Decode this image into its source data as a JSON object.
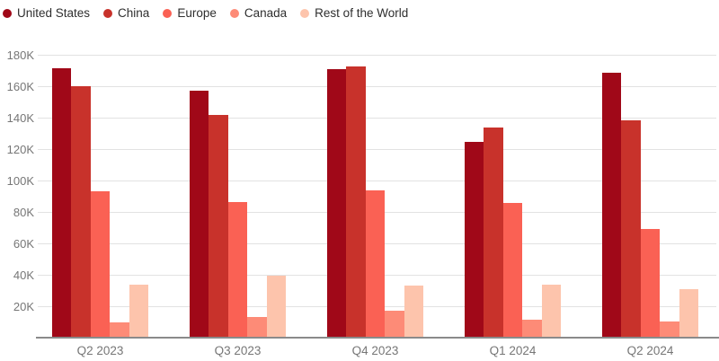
{
  "chart_data": {
    "type": "bar",
    "title": "",
    "xlabel": "",
    "ylabel": "",
    "categories": [
      "Q2 2023",
      "Q3 2023",
      "Q4 2023",
      "Q1 2024",
      "Q2 2024"
    ],
    "series": [
      {
        "name": "United States",
        "color": "#a00818",
        "values": [
          171500,
          157000,
          171000,
          124500,
          168500
        ]
      },
      {
        "name": "China",
        "color": "#c8322b",
        "values": [
          160000,
          141500,
          172500,
          133500,
          138500
        ]
      },
      {
        "name": "Europe",
        "color": "#fa6154",
        "values": [
          93000,
          86500,
          93500,
          86000,
          69000
        ]
      },
      {
        "name": "Canada",
        "color": "#fd8b77",
        "values": [
          10000,
          13000,
          17000,
          11500,
          10500
        ]
      },
      {
        "name": "Rest of the World",
        "color": "#fdc4ac",
        "values": [
          34000,
          39500,
          33000,
          33500,
          31000
        ]
      }
    ],
    "ylim": [
      0,
      180000
    ],
    "ytick_step": 20000,
    "ytick_labels": [
      "20K",
      "40K",
      "60K",
      "80K",
      "100K",
      "120K",
      "140K",
      "160K",
      "180K"
    ],
    "grid": true,
    "legend_position": "top-left",
    "axis_colors": {
      "gridline": "#e2e2e2",
      "baseline": "#8a8a8a",
      "tick_text": "#767676"
    }
  }
}
